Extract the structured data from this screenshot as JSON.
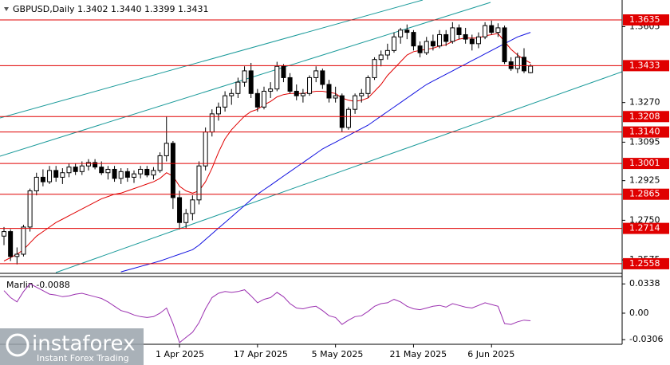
{
  "chart_data": {
    "type": "candlestick",
    "header": "GBPUSD,Daily  1.3402 1.3440 1.3399 1.3431",
    "watermark": {
      "name": "instaforex",
      "tagline": "Instant Forex Trading"
    },
    "categories": [
      null,
      null,
      null,
      null,
      null,
      null,
      null,
      null,
      null,
      null,
      null,
      null,
      null,
      null,
      null,
      null,
      null,
      null,
      null,
      null,
      null,
      null,
      null,
      null,
      null,
      null,
      null,
      "1 Apr 2025",
      null,
      null,
      null,
      null,
      null,
      null,
      null,
      null,
      null,
      null,
      null,
      "17 Apr 2025",
      null,
      null,
      null,
      null,
      null,
      null,
      null,
      null,
      null,
      null,
      null,
      "5 May 2025",
      null,
      null,
      null,
      null,
      null,
      null,
      null,
      null,
      null,
      null,
      null,
      "21 May 2025",
      null,
      null,
      null,
      null,
      null,
      null,
      null,
      null,
      null,
      null,
      null,
      "6 Jun 2025",
      null,
      null,
      null,
      null,
      null,
      null
    ],
    "ohlc": [
      [
        1.268,
        1.272,
        1.264,
        1.27
      ],
      [
        1.27,
        1.271,
        1.257,
        1.259
      ],
      [
        1.259,
        1.263,
        1.2555,
        1.26
      ],
      [
        1.26,
        1.273,
        1.259,
        1.272
      ],
      [
        1.272,
        1.289,
        1.27,
        1.288
      ],
      [
        1.288,
        1.296,
        1.286,
        1.294
      ],
      [
        1.294,
        1.2975,
        1.29,
        1.292
      ],
      [
        1.292,
        1.299,
        1.291,
        1.297
      ],
      [
        1.297,
        1.299,
        1.292,
        1.294
      ],
      [
        1.294,
        1.298,
        1.291,
        1.296
      ],
      [
        1.296,
        1.3,
        1.294,
        1.2985
      ],
      [
        1.2985,
        1.3,
        1.295,
        1.2965
      ],
      [
        1.2965,
        1.301,
        1.295,
        1.299
      ],
      [
        1.299,
        1.302,
        1.297,
        1.3005
      ],
      [
        1.3005,
        1.302,
        1.2975,
        1.2985
      ],
      [
        1.2985,
        1.301,
        1.295,
        1.296
      ],
      [
        1.296,
        1.299,
        1.293,
        1.2975
      ],
      [
        1.2975,
        1.299,
        1.292,
        1.2935
      ],
      [
        1.2935,
        1.298,
        1.291,
        1.2965
      ],
      [
        1.2965,
        1.298,
        1.292,
        1.294
      ],
      [
        1.294,
        1.297,
        1.2915,
        1.2955
      ],
      [
        1.2955,
        1.299,
        1.2935,
        1.2975
      ],
      [
        1.2975,
        1.299,
        1.294,
        1.295
      ],
      [
        1.295,
        1.2985,
        1.293,
        1.297
      ],
      [
        1.297,
        1.305,
        1.296,
        1.3035
      ],
      [
        1.3035,
        1.3208,
        1.301,
        1.309
      ],
      [
        1.309,
        1.31,
        1.28,
        1.285
      ],
      [
        1.285,
        1.288,
        1.271,
        1.274
      ],
      [
        1.274,
        1.28,
        1.2714,
        1.278
      ],
      [
        1.278,
        1.286,
        1.275,
        1.284
      ],
      [
        1.284,
        1.301,
        1.282,
        1.299
      ],
      [
        1.299,
        1.316,
        1.297,
        1.314
      ],
      [
        1.314,
        1.324,
        1.312,
        1.322
      ],
      [
        1.322,
        1.327,
        1.319,
        1.325
      ],
      [
        1.325,
        1.332,
        1.323,
        1.33
      ],
      [
        1.33,
        1.333,
        1.326,
        1.331
      ],
      [
        1.331,
        1.338,
        1.329,
        1.336
      ],
      [
        1.336,
        1.343,
        1.334,
        1.341
      ],
      [
        1.341,
        1.3445,
        1.329,
        1.331
      ],
      [
        1.331,
        1.333,
        1.323,
        1.325
      ],
      [
        1.325,
        1.334,
        1.324,
        1.332
      ],
      [
        1.332,
        1.336,
        1.329,
        1.333
      ],
      [
        1.333,
        1.345,
        1.332,
        1.343
      ],
      [
        1.343,
        1.344,
        1.336,
        1.338
      ],
      [
        1.338,
        1.34,
        1.331,
        1.332
      ],
      [
        1.332,
        1.335,
        1.328,
        1.33
      ],
      [
        1.33,
        1.333,
        1.327,
        1.331
      ],
      [
        1.331,
        1.339,
        1.33,
        1.338
      ],
      [
        1.338,
        1.343,
        1.336,
        1.341
      ],
      [
        1.341,
        1.342,
        1.333,
        1.335
      ],
      [
        1.335,
        1.337,
        1.327,
        1.329
      ],
      [
        1.329,
        1.334,
        1.327,
        1.33
      ],
      [
        1.33,
        1.331,
        1.314,
        1.316
      ],
      [
        1.316,
        1.325,
        1.315,
        1.324
      ],
      [
        1.324,
        1.331,
        1.322,
        1.33
      ],
      [
        1.33,
        1.333,
        1.327,
        1.331
      ],
      [
        1.331,
        1.339,
        1.329,
        1.338
      ],
      [
        1.338,
        1.347,
        1.337,
        1.346
      ],
      [
        1.346,
        1.35,
        1.343,
        1.348
      ],
      [
        1.348,
        1.353,
        1.346,
        1.35
      ],
      [
        1.35,
        1.358,
        1.349,
        1.356
      ],
      [
        1.356,
        1.36,
        1.353,
        1.359
      ],
      [
        1.359,
        1.3615,
        1.355,
        1.358
      ],
      [
        1.358,
        1.359,
        1.35,
        1.352
      ],
      [
        1.352,
        1.354,
        1.347,
        1.349
      ],
      [
        1.349,
        1.356,
        1.348,
        1.354
      ],
      [
        1.354,
        1.357,
        1.35,
        1.352
      ],
      [
        1.352,
        1.359,
        1.351,
        1.357
      ],
      [
        1.357,
        1.359,
        1.352,
        1.354
      ],
      [
        1.354,
        1.3625,
        1.353,
        1.36
      ],
      [
        1.36,
        1.3615,
        1.355,
        1.357
      ],
      [
        1.357,
        1.36,
        1.353,
        1.355
      ],
      [
        1.355,
        1.357,
        1.35,
        1.353
      ],
      [
        1.353,
        1.358,
        1.351,
        1.356
      ],
      [
        1.356,
        1.3625,
        1.355,
        1.361
      ],
      [
        1.361,
        1.3632,
        1.357,
        1.358
      ],
      [
        1.358,
        1.362,
        1.356,
        1.36
      ],
      [
        1.36,
        1.361,
        1.344,
        1.345
      ],
      [
        1.345,
        1.347,
        1.341,
        1.342
      ],
      [
        1.342,
        1.349,
        1.34,
        1.347
      ],
      [
        1.347,
        1.351,
        1.34,
        1.341
      ],
      [
        1.3402,
        1.344,
        1.3399,
        1.3431
      ]
    ],
    "lines": [
      {
        "color": "#e00000",
        "values": [
          1.257,
          1.2585,
          1.26,
          1.262,
          1.265,
          1.268,
          1.27,
          1.272,
          1.274,
          1.2755,
          1.277,
          1.2785,
          1.28,
          1.2815,
          1.283,
          1.2845,
          1.2855,
          1.2865,
          1.287,
          1.288,
          1.289,
          1.29,
          1.291,
          1.292,
          1.2935,
          1.296,
          1.2945,
          1.29,
          1.288,
          1.287,
          1.288,
          1.292,
          1.298,
          1.305,
          1.311,
          1.315,
          1.318,
          1.321,
          1.323,
          1.324,
          1.326,
          1.3275,
          1.3295,
          1.3305,
          1.331,
          1.331,
          1.331,
          1.3315,
          1.332,
          1.332,
          1.3315,
          1.331,
          1.329,
          1.328,
          1.3275,
          1.328,
          1.329,
          1.332,
          1.335,
          1.339,
          1.342,
          1.345,
          1.348,
          1.3495,
          1.35,
          1.3505,
          1.351,
          1.352,
          1.3525,
          1.354,
          1.355,
          1.3555,
          1.3555,
          1.3555,
          1.3565,
          1.357,
          1.3575,
          1.354,
          1.3505,
          1.348,
          1.346,
          1.3445
        ]
      },
      {
        "color": "#1010e0",
        "values": [
          null,
          null,
          null,
          null,
          null,
          null,
          null,
          null,
          null,
          null,
          null,
          null,
          null,
          null,
          null,
          null,
          null,
          null,
          1.2522,
          1.253,
          1.2538,
          1.2546,
          1.2554,
          1.2562,
          1.257,
          1.258,
          1.259,
          1.26,
          1.261,
          1.262,
          1.264,
          1.2665,
          1.269,
          1.2715,
          1.274,
          1.2765,
          1.279,
          1.2815,
          1.284,
          1.2865,
          1.2885,
          1.2905,
          1.2925,
          1.2945,
          1.2965,
          1.2985,
          1.3005,
          1.3025,
          1.3045,
          1.3065,
          1.308,
          1.3095,
          1.311,
          1.3125,
          1.314,
          1.3155,
          1.317,
          1.319,
          1.321,
          1.323,
          1.325,
          1.327,
          1.329,
          1.331,
          1.333,
          1.335,
          1.3365,
          1.338,
          1.3395,
          1.341,
          1.3425,
          1.344,
          1.3455,
          1.347,
          1.3485,
          1.35,
          1.3515,
          1.353,
          1.3545,
          1.356,
          1.357,
          1.358
        ]
      }
    ],
    "ylim": [
      1.2519,
      1.3723
    ],
    "yticks": [
      1.3605,
      {
        "value": 1.327,
        "label": "1.3270"
      },
      1.3095,
      1.2925,
      {
        "value": 1.275,
        "label": "1.2750"
      },
      1.2575
    ],
    "levels": [
      1.3635,
      1.3433,
      1.3208,
      {
        "value": 1.314,
        "label": "1.3140"
      },
      1.3001,
      1.2865,
      1.2714,
      1.2558
    ],
    "level_color": "#e00000",
    "grid": false,
    "indicator": {
      "label": "Marlin -0.0088",
      "color": "#9b30b0",
      "ylim": [
        -0.0359,
        0.0423
      ],
      "yticks": [
        0.0338,
        {
          "value": 0,
          "label": "0.00"
        },
        -0.0306
      ],
      "values": [
        0.026,
        0.018,
        0.013,
        0.025,
        0.034,
        0.03,
        0.026,
        0.022,
        0.021,
        0.019,
        0.02,
        0.022,
        0.023,
        0.021,
        0.019,
        0.017,
        0.013,
        0.008,
        0.003,
        0.001,
        -0.002,
        -0.004,
        -0.005,
        -0.004,
        0.0,
        0.006,
        -0.012,
        -0.034,
        -0.028,
        -0.022,
        -0.011,
        0.005,
        0.018,
        0.023,
        0.025,
        0.024,
        0.025,
        0.027,
        0.02,
        0.012,
        0.016,
        0.018,
        0.024,
        0.019,
        0.011,
        0.006,
        0.005,
        0.007,
        0.008,
        0.003,
        -0.003,
        -0.005,
        -0.013,
        -0.008,
        -0.004,
        -0.003,
        0.002,
        0.008,
        0.011,
        0.012,
        0.016,
        0.013,
        0.008,
        0.005,
        0.004,
        0.006,
        0.008,
        0.009,
        0.007,
        0.011,
        0.009,
        0.007,
        0.006,
        0.009,
        0.012,
        0.01,
        0.008,
        -0.012,
        -0.013,
        -0.01,
        -0.008,
        -0.0088
      ]
    }
  }
}
